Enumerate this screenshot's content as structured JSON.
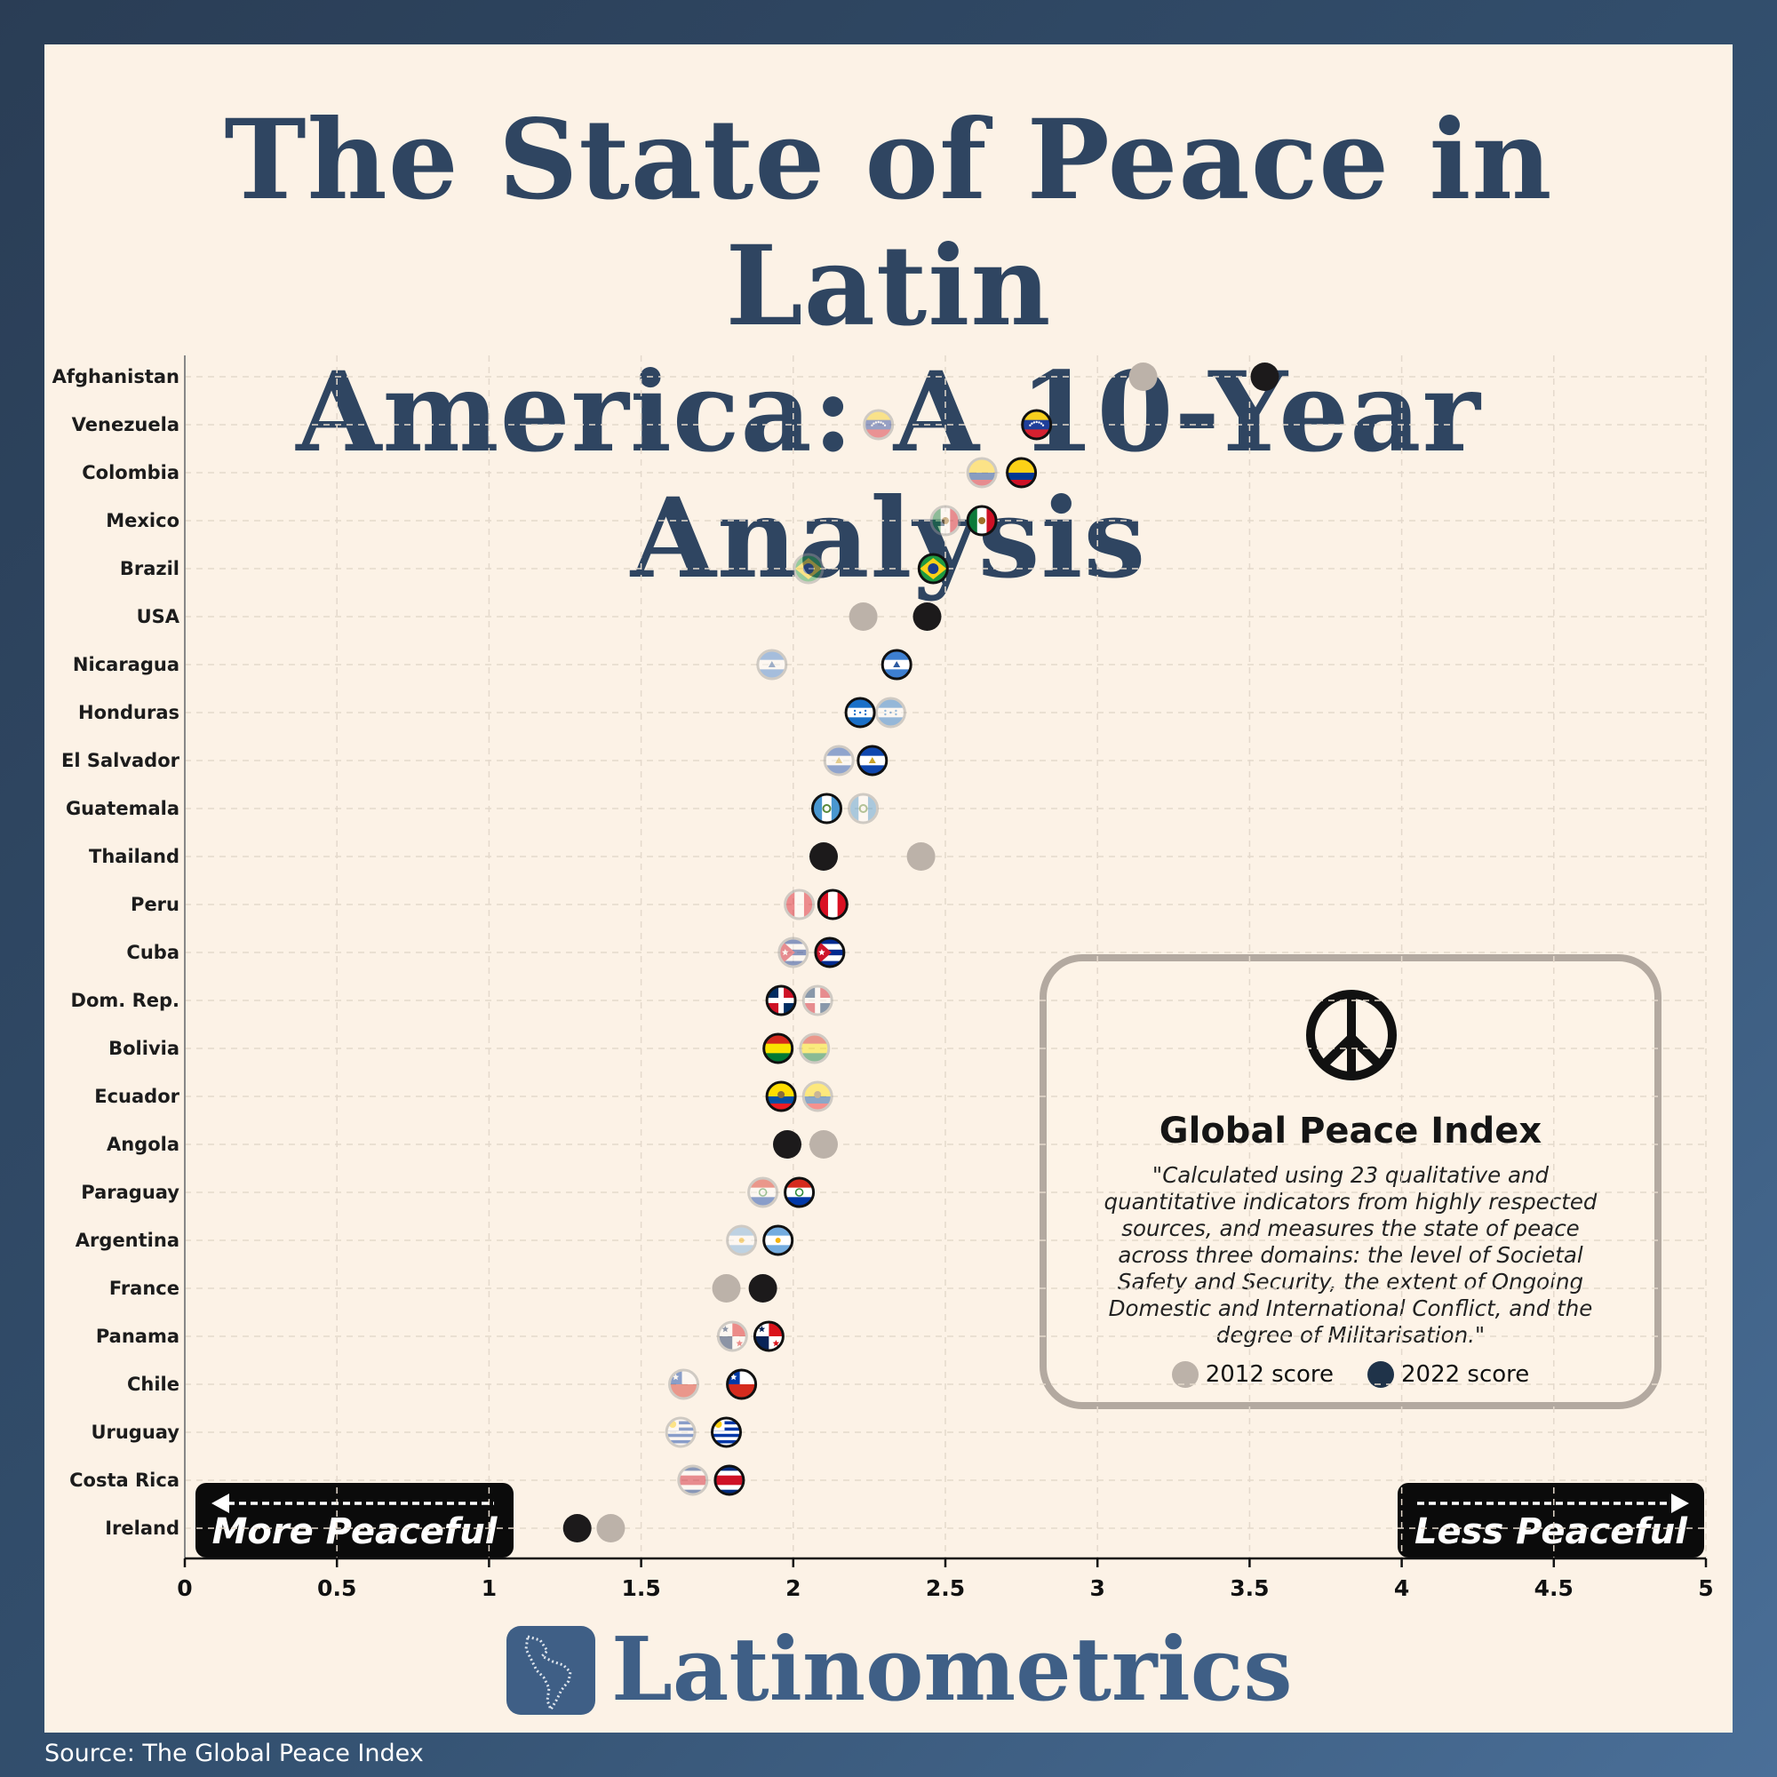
{
  "title_lines": [
    "The State of Peace in Latin",
    "America: A 10-Year Analysis"
  ],
  "source": "Source: The Global Peace Index",
  "brand": "Latinometrics",
  "info_box": {
    "title": "Global Peace Index",
    "description": "\"Calculated using 23 qualitative and quantitative indicators from highly respected sources, and measures the state of peace across three domains: the level of Societal Safety and Security, the extent of Ongoing Domestic and International Conflict, and the degree of Militarisation.\"",
    "legend": [
      {
        "label": "2012 score",
        "color": "#bcb2a9"
      },
      {
        "label": "2022 score",
        "color": "#1f3349"
      }
    ]
  },
  "direction_labels": {
    "left": "More Peaceful",
    "right": "Less Peaceful"
  },
  "chart_data": {
    "type": "scatter",
    "title": "The State of Peace in Latin America: A 10-Year Analysis",
    "xlabel": "",
    "ylabel": "",
    "xlim": [
      0,
      5
    ],
    "xticks": [
      "0",
      "0.5",
      "1",
      "1.5",
      "2",
      "2.5",
      "3",
      "3.5",
      "4",
      "4.5",
      "5"
    ],
    "grid": true,
    "series": [
      {
        "name": "2012 score"
      },
      {
        "name": "2022 score"
      }
    ],
    "rows": [
      {
        "country": "Afghanistan",
        "s2012": 3.15,
        "s2022": 3.55,
        "flag": "none"
      },
      {
        "country": "Venezuela",
        "s2012": 2.28,
        "s2022": 2.8,
        "flag": "venezuela"
      },
      {
        "country": "Colombia",
        "s2012": 2.62,
        "s2022": 2.75,
        "flag": "colombia"
      },
      {
        "country": "Mexico",
        "s2012": 2.5,
        "s2022": 2.62,
        "flag": "mexico"
      },
      {
        "country": "Brazil",
        "s2012": 2.05,
        "s2022": 2.46,
        "flag": "brazil"
      },
      {
        "country": "USA",
        "s2012": 2.23,
        "s2022": 2.44,
        "flag": "none"
      },
      {
        "country": "Nicaragua",
        "s2012": 1.93,
        "s2022": 2.34,
        "flag": "nicaragua"
      },
      {
        "country": "Honduras",
        "s2012": 2.32,
        "s2022": 2.22,
        "flag": "honduras"
      },
      {
        "country": "El Salvador",
        "s2012": 2.15,
        "s2022": 2.26,
        "flag": "elsalvador"
      },
      {
        "country": "Guatemala",
        "s2012": 2.23,
        "s2022": 2.11,
        "flag": "guatemala"
      },
      {
        "country": "Thailand",
        "s2012": 2.42,
        "s2022": 2.1,
        "flag": "none"
      },
      {
        "country": "Peru",
        "s2012": 2.02,
        "s2022": 2.13,
        "flag": "peru"
      },
      {
        "country": "Cuba",
        "s2012": 2.0,
        "s2022": 2.12,
        "flag": "cuba"
      },
      {
        "country": "Dom. Rep.",
        "s2012": 2.08,
        "s2022": 1.96,
        "flag": "domrep"
      },
      {
        "country": "Bolivia",
        "s2012": 2.07,
        "s2022": 1.95,
        "flag": "bolivia"
      },
      {
        "country": "Ecuador",
        "s2012": 2.08,
        "s2022": 1.96,
        "flag": "ecuador"
      },
      {
        "country": "Angola",
        "s2012": 2.1,
        "s2022": 1.98,
        "flag": "none"
      },
      {
        "country": "Paraguay",
        "s2012": 1.9,
        "s2022": 2.02,
        "flag": "paraguay"
      },
      {
        "country": "Argentina",
        "s2012": 1.83,
        "s2022": 1.95,
        "flag": "argentina"
      },
      {
        "country": "France",
        "s2012": 1.78,
        "s2022": 1.9,
        "flag": "none"
      },
      {
        "country": "Panama",
        "s2012": 1.8,
        "s2022": 1.92,
        "flag": "panama"
      },
      {
        "country": "Chile",
        "s2012": 1.64,
        "s2022": 1.83,
        "flag": "chile"
      },
      {
        "country": "Uruguay",
        "s2012": 1.63,
        "s2022": 1.78,
        "flag": "uruguay"
      },
      {
        "country": "Costa Rica",
        "s2012": 1.67,
        "s2022": 1.79,
        "flag": "costarica"
      },
      {
        "country": "Ireland",
        "s2012": 1.4,
        "s2022": 1.29,
        "flag": "none"
      }
    ]
  }
}
